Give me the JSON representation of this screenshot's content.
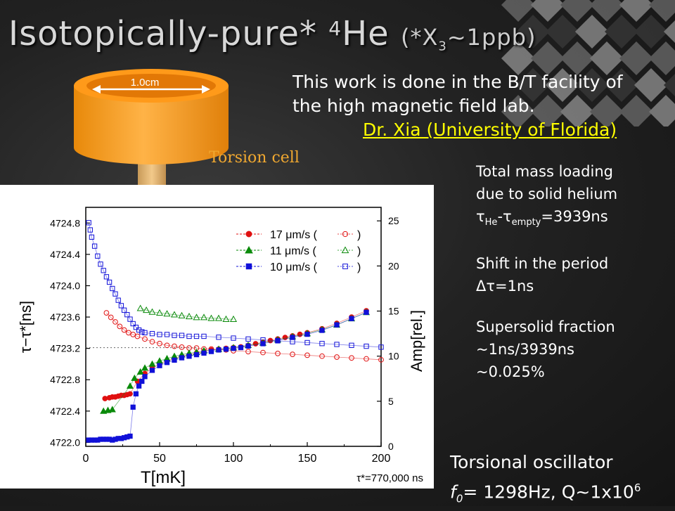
{
  "slide": {
    "title_main": "Isotopically-pure* ",
    "title_superscript": "4",
    "title_element": "He",
    "title_note_prefix": "(*X",
    "title_note_sub": "3",
    "title_note_suffix": "~1ppb)",
    "intro_line1": "This work is done in the B/T facility of",
    "intro_line2": "the high magnetic field lab.",
    "credit": "Dr. Xia (University of Florida)",
    "cell_dimension": "1.0cm",
    "cell_label": "Torsion cell",
    "facts": {
      "mass_line1": "Total mass loading",
      "mass_line2": "due to solid helium",
      "tau_he": "τ",
      "tau_he_sub": "He",
      "tau_dash": "-τ",
      "tau_empty_sub": "empty",
      "tau_value": "=3939ns",
      "shift_line1": "Shift in the period",
      "shift_value": "Δτ=1ns",
      "ss_line1": "Supersolid fraction",
      "ss_line2": "~1ns/3939ns",
      "ss_line3": "~0.025%"
    },
    "oscillator": {
      "line1": "Torsional oscillator",
      "f": "f",
      "f_sub": "0",
      "rest": "= 1298Hz, Q~1x10",
      "exp": "6"
    }
  },
  "chart_data": {
    "type": "scatter",
    "xlabel": "T[mK]",
    "ylabel_left": "τ−τ*[ns]",
    "ylabel_right": "Amp[rel.]",
    "annotation": "τ*=770,000 ns",
    "xlim": [
      0,
      200
    ],
    "ylim_left": [
      4721.95,
      4725.0
    ],
    "ylim_right": [
      0,
      26.5
    ],
    "x_ticks": [
      0,
      50,
      100,
      150,
      200
    ],
    "y_ticks_left": [
      4722.0,
      4722.4,
      4722.8,
      4723.2,
      4723.6,
      4724.0,
      4724.4,
      4724.8
    ],
    "y_ticks_right": [
      0,
      5,
      10,
      15,
      20,
      25
    ],
    "legend": [
      {
        "label": "17 μm/s (",
        "suffix": ")",
        "color": "#e01010",
        "marker": "circle"
      },
      {
        "label": "11 μm/s (",
        "suffix": ")",
        "color": "#0a8a0a",
        "marker": "triangle"
      },
      {
        "label": "10 μm/s (",
        "suffix": ")",
        "color": "#1010d8",
        "marker": "square"
      }
    ],
    "baseline_dotted": {
      "x": [
        0,
        75
      ],
      "y": [
        4723.21,
        4723.21
      ]
    },
    "series": [
      {
        "name": "17 μm/s",
        "axis": "left",
        "filled": true,
        "marker": "circle",
        "color": "#e01010",
        "x": [
          13,
          16,
          18,
          20,
          22,
          24,
          26,
          28,
          30,
          35,
          40,
          45,
          50,
          55,
          60,
          65,
          70,
          75,
          80,
          85,
          90,
          95,
          100,
          105,
          110,
          115,
          120,
          125,
          130,
          135,
          140,
          145,
          150,
          160,
          170,
          180,
          190
        ],
        "y": [
          4722.56,
          4722.57,
          4722.58,
          4722.58,
          4722.59,
          4722.6,
          4722.6,
          4722.61,
          4722.62,
          4722.78,
          4722.88,
          4722.95,
          4723.0,
          4723.04,
          4723.07,
          4723.1,
          4723.12,
          4723.14,
          4723.16,
          4723.18,
          4723.19,
          4723.2,
          4723.21,
          4723.22,
          4723.24,
          4723.26,
          4723.28,
          4723.3,
          4723.32,
          4723.34,
          4723.36,
          4723.38,
          4723.4,
          4723.45,
          4723.52,
          4723.6,
          4723.68
        ]
      },
      {
        "name": "17 μm/s amplitude",
        "axis": "right",
        "filled": false,
        "marker": "circle",
        "color": "#e01010",
        "x": [
          14,
          17,
          20,
          23,
          26,
          29,
          32,
          35,
          40,
          45,
          50,
          55,
          60,
          65,
          70,
          75,
          80,
          85,
          90,
          95,
          100,
          110,
          120,
          130,
          140,
          150,
          160,
          170,
          180,
          190,
          200
        ],
        "y": [
          14.8,
          14.3,
          13.8,
          13.3,
          12.9,
          12.6,
          12.4,
          12.2,
          11.9,
          11.6,
          11.4,
          11.2,
          11.1,
          11.0,
          10.9,
          10.9,
          10.8,
          10.8,
          10.7,
          10.7,
          10.6,
          10.5,
          10.4,
          10.3,
          10.2,
          10.1,
          10.0,
          9.9,
          9.8,
          9.7,
          9.6
        ]
      },
      {
        "name": "11 μm/s",
        "axis": "left",
        "filled": true,
        "marker": "triangle",
        "color": "#0a8a0a",
        "x": [
          12,
          15,
          18,
          30,
          33,
          37,
          40,
          45,
          50,
          55,
          60,
          65,
          70,
          75,
          80,
          90,
          100,
          110,
          120,
          130,
          140,
          150,
          160,
          170,
          180,
          190
        ],
        "y": [
          4722.4,
          4722.41,
          4722.42,
          4722.72,
          4722.82,
          4722.9,
          4722.95,
          4723.0,
          4723.04,
          4723.07,
          4723.1,
          4723.12,
          4723.14,
          4723.15,
          4723.17,
          4723.19,
          4723.21,
          4723.24,
          4723.27,
          4723.31,
          4723.35,
          4723.39,
          4723.44,
          4723.5,
          4723.58,
          4723.66
        ]
      },
      {
        "name": "11 μm/s amplitude",
        "axis": "right",
        "filled": false,
        "marker": "triangle",
        "color": "#0a8a0a",
        "x": [
          37,
          41,
          45,
          50,
          55,
          60,
          65,
          70,
          75,
          80,
          85,
          90,
          95,
          100
        ],
        "y": [
          15.3,
          15.1,
          14.9,
          14.8,
          14.7,
          14.6,
          14.5,
          14.4,
          14.3,
          14.3,
          14.2,
          14.2,
          14.1,
          14.1
        ]
      },
      {
        "name": "10 μm/s",
        "axis": "left",
        "filled": true,
        "marker": "square",
        "color": "#1010d8",
        "x": [
          2,
          4,
          6,
          8,
          10,
          12,
          14,
          16,
          18,
          20,
          22,
          24,
          26,
          28,
          30,
          32,
          34,
          36,
          38,
          40,
          45,
          50,
          55,
          60,
          65,
          70,
          75,
          80,
          85,
          90,
          95,
          100,
          105,
          110,
          120,
          130,
          140,
          150,
          160,
          170,
          180,
          190
        ],
        "y": [
          4722.03,
          4722.03,
          4722.03,
          4722.03,
          4722.04,
          4722.04,
          4722.04,
          4722.04,
          4722.03,
          4722.04,
          4722.05,
          4722.05,
          4722.06,
          4722.07,
          4722.08,
          4722.45,
          4722.62,
          4722.72,
          4722.78,
          4722.84,
          4722.92,
          4722.98,
          4723.02,
          4723.05,
          4723.08,
          4723.1,
          4723.12,
          4723.14,
          4723.16,
          4723.18,
          4723.19,
          4723.2,
          4723.21,
          4723.23,
          4723.26,
          4723.3,
          4723.34,
          4723.38,
          4723.43,
          4723.5,
          4723.58,
          4723.66
        ]
      },
      {
        "name": "10 μm/s amplitude",
        "axis": "right",
        "filled": false,
        "marker": "square",
        "color": "#1010d8",
        "x": [
          2,
          3,
          4,
          6,
          8,
          10,
          12,
          14,
          16,
          18,
          20,
          22,
          24,
          26,
          28,
          30,
          32,
          34,
          36,
          38,
          40,
          45,
          50,
          55,
          60,
          65,
          70,
          75,
          80,
          90,
          100,
          110,
          120,
          130,
          140,
          150,
          160,
          170,
          180,
          190,
          200
        ],
        "y": [
          24.8,
          24.0,
          23.2,
          22.2,
          21.1,
          20.2,
          19.5,
          18.8,
          18.2,
          17.5,
          16.9,
          16.2,
          15.6,
          15.1,
          14.6,
          14.1,
          13.6,
          13.2,
          12.9,
          12.7,
          12.6,
          12.5,
          12.4,
          12.4,
          12.3,
          12.3,
          12.2,
          12.2,
          12.2,
          12.1,
          12.0,
          11.9,
          11.8,
          11.7,
          11.6,
          11.5,
          11.4,
          11.3,
          11.2,
          11.1,
          11.0
        ]
      }
    ]
  }
}
